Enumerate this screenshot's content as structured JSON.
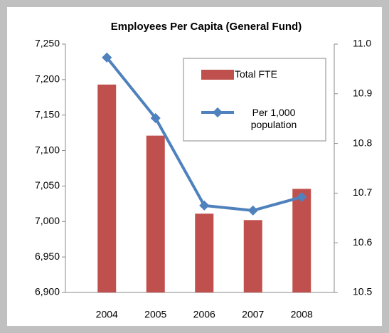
{
  "chart_data": {
    "type": "bar_line",
    "title": "Employees Per Capita (General Fund)",
    "categories": [
      "2004",
      "2005",
      "2006",
      "2007",
      "2008"
    ],
    "series": [
      {
        "name": "Total FTE",
        "type": "bar",
        "color": "#c0504d",
        "values": [
          7193,
          7121,
          7011,
          7002,
          7046
        ]
      },
      {
        "name": "Per 1,000 population",
        "type": "line",
        "axis": "y2",
        "color": "#4f81bd",
        "values": [
          10.973,
          10.851,
          10.675,
          10.665,
          10.692
        ]
      }
    ],
    "ylim": [
      6900,
      7250
    ],
    "yticks": [
      {
        "value": 6900,
        "label": "6,900"
      },
      {
        "value": 6950,
        "label": "6,950"
      },
      {
        "value": 7000,
        "label": "7,000"
      },
      {
        "value": 7050,
        "label": "7,050"
      },
      {
        "value": 7100,
        "label": "7,100"
      },
      {
        "value": 7150,
        "label": "7,150"
      },
      {
        "value": 7200,
        "label": "7,200"
      },
      {
        "value": 7250,
        "label": "7,250"
      }
    ],
    "y2lim": [
      10.5,
      11.0
    ],
    "y2ticks": [
      10.5,
      10.6,
      10.7,
      10.8,
      10.9,
      {
        "value": 11.0,
        "label": "11.0"
      }
    ],
    "legend": "upper right"
  }
}
